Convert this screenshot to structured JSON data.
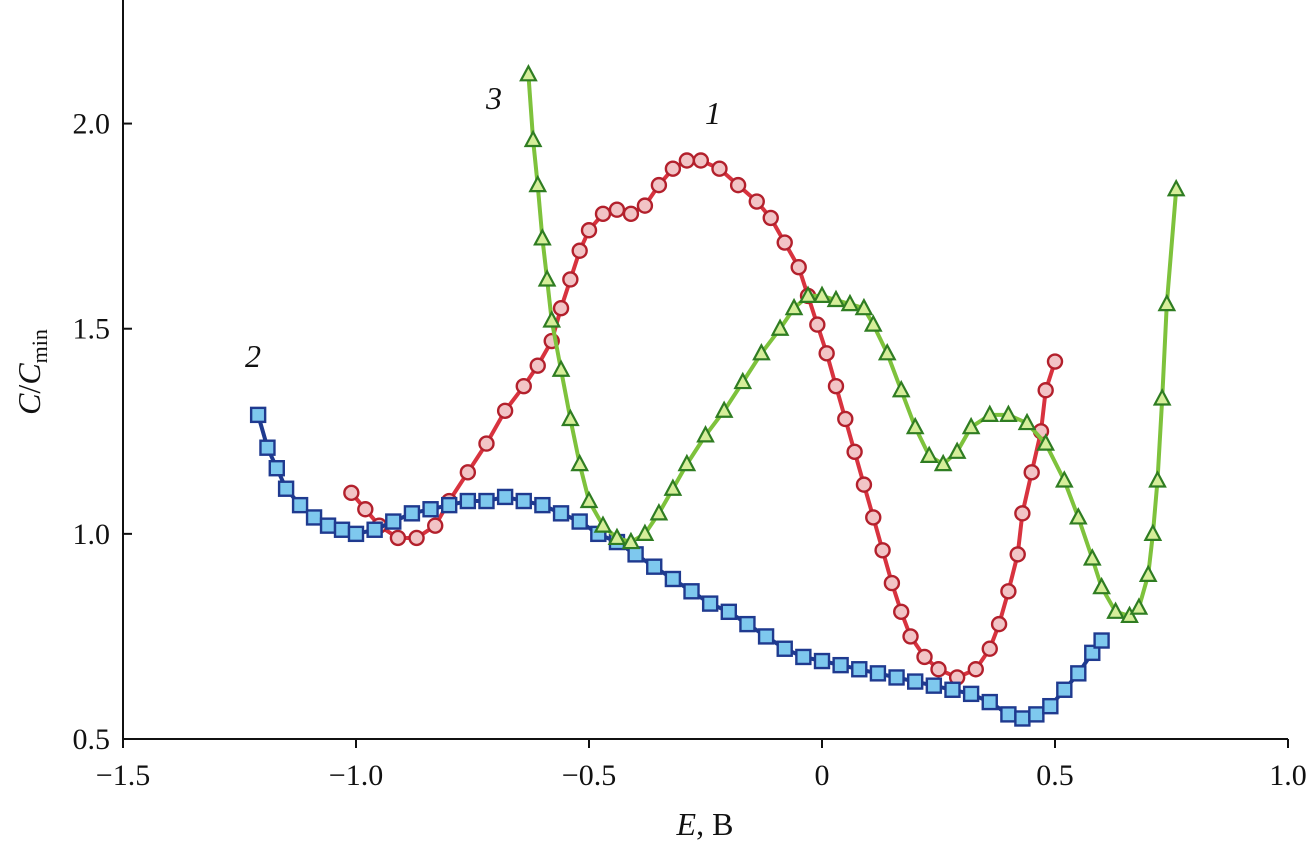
{
  "chart_data": {
    "type": "scatter",
    "title": "",
    "xlabel": {
      "italic": "E",
      "rest": ", В"
    },
    "ylabel": {
      "main": "C",
      "sep": "/",
      "sub_base": "C",
      "sub": "min"
    },
    "xlim": [
      -1.5,
      1.0
    ],
    "ylim": [
      0.5,
      2.25
    ],
    "xticks": [
      -1.5,
      -1.0,
      -0.5,
      0,
      0.5,
      1.0
    ],
    "xtick_labels": [
      "−1.5",
      "−1.0",
      "−0.5",
      "0",
      "0.5",
      "1.0"
    ],
    "yticks": [
      0.5,
      1.0,
      1.5,
      2.0
    ],
    "ytick_labels": [
      "0.5",
      "1.0",
      "1.5",
      "2.0"
    ],
    "grid": false,
    "series": [
      {
        "name": "1",
        "marker": "circle",
        "fill": "#f2c4c6",
        "stroke": "#b3202c",
        "line": "#d8333f",
        "points": [
          [
            -1.01,
            1.1
          ],
          [
            -0.98,
            1.06
          ],
          [
            -0.95,
            1.02
          ],
          [
            -0.91,
            0.99
          ],
          [
            -0.87,
            0.99
          ],
          [
            -0.83,
            1.02
          ],
          [
            -0.8,
            1.08
          ],
          [
            -0.76,
            1.15
          ],
          [
            -0.72,
            1.22
          ],
          [
            -0.68,
            1.3
          ],
          [
            -0.64,
            1.36
          ],
          [
            -0.61,
            1.41
          ],
          [
            -0.58,
            1.47
          ],
          [
            -0.56,
            1.55
          ],
          [
            -0.54,
            1.62
          ],
          [
            -0.52,
            1.69
          ],
          [
            -0.5,
            1.74
          ],
          [
            -0.47,
            1.78
          ],
          [
            -0.44,
            1.79
          ],
          [
            -0.41,
            1.78
          ],
          [
            -0.38,
            1.8
          ],
          [
            -0.35,
            1.85
          ],
          [
            -0.32,
            1.89
          ],
          [
            -0.29,
            1.91
          ],
          [
            -0.26,
            1.91
          ],
          [
            -0.22,
            1.89
          ],
          [
            -0.18,
            1.85
          ],
          [
            -0.14,
            1.81
          ],
          [
            -0.11,
            1.77
          ],
          [
            -0.08,
            1.71
          ],
          [
            -0.05,
            1.65
          ],
          [
            -0.03,
            1.58
          ],
          [
            -0.01,
            1.51
          ],
          [
            0.01,
            1.44
          ],
          [
            0.03,
            1.36
          ],
          [
            0.05,
            1.28
          ],
          [
            0.07,
            1.2
          ],
          [
            0.09,
            1.12
          ],
          [
            0.11,
            1.04
          ],
          [
            0.13,
            0.96
          ],
          [
            0.15,
            0.88
          ],
          [
            0.17,
            0.81
          ],
          [
            0.19,
            0.75
          ],
          [
            0.22,
            0.7
          ],
          [
            0.25,
            0.67
          ],
          [
            0.29,
            0.65
          ],
          [
            0.33,
            0.67
          ],
          [
            0.36,
            0.72
          ],
          [
            0.38,
            0.78
          ],
          [
            0.4,
            0.86
          ],
          [
            0.42,
            0.95
          ],
          [
            0.43,
            1.05
          ],
          [
            0.45,
            1.15
          ],
          [
            0.47,
            1.25
          ],
          [
            0.48,
            1.35
          ],
          [
            0.5,
            1.42
          ]
        ]
      },
      {
        "name": "2",
        "marker": "square",
        "fill": "#7ec8ee",
        "stroke": "#1f3a8f",
        "line": "#1f3a8f",
        "points": [
          [
            -1.21,
            1.29
          ],
          [
            -1.19,
            1.21
          ],
          [
            -1.17,
            1.16
          ],
          [
            -1.15,
            1.11
          ],
          [
            -1.12,
            1.07
          ],
          [
            -1.09,
            1.04
          ],
          [
            -1.06,
            1.02
          ],
          [
            -1.03,
            1.01
          ],
          [
            -1.0,
            1.0
          ],
          [
            -0.96,
            1.01
          ],
          [
            -0.92,
            1.03
          ],
          [
            -0.88,
            1.05
          ],
          [
            -0.84,
            1.06
          ],
          [
            -0.8,
            1.07
          ],
          [
            -0.76,
            1.08
          ],
          [
            -0.72,
            1.08
          ],
          [
            -0.68,
            1.09
          ],
          [
            -0.64,
            1.08
          ],
          [
            -0.6,
            1.07
          ],
          [
            -0.56,
            1.05
          ],
          [
            -0.52,
            1.03
          ],
          [
            -0.48,
            1.0
          ],
          [
            -0.44,
            0.98
          ],
          [
            -0.4,
            0.95
          ],
          [
            -0.36,
            0.92
          ],
          [
            -0.32,
            0.89
          ],
          [
            -0.28,
            0.86
          ],
          [
            -0.24,
            0.83
          ],
          [
            -0.2,
            0.81
          ],
          [
            -0.16,
            0.78
          ],
          [
            -0.12,
            0.75
          ],
          [
            -0.08,
            0.72
          ],
          [
            -0.04,
            0.7
          ],
          [
            0.0,
            0.69
          ],
          [
            0.04,
            0.68
          ],
          [
            0.08,
            0.67
          ],
          [
            0.12,
            0.66
          ],
          [
            0.16,
            0.65
          ],
          [
            0.2,
            0.64
          ],
          [
            0.24,
            0.63
          ],
          [
            0.28,
            0.62
          ],
          [
            0.32,
            0.61
          ],
          [
            0.36,
            0.59
          ],
          [
            0.4,
            0.56
          ],
          [
            0.43,
            0.55
          ],
          [
            0.46,
            0.56
          ],
          [
            0.49,
            0.58
          ],
          [
            0.52,
            0.62
          ],
          [
            0.55,
            0.66
          ],
          [
            0.58,
            0.71
          ],
          [
            0.6,
            0.74
          ]
        ]
      },
      {
        "name": "3",
        "marker": "triangle",
        "fill": "#d6ee9a",
        "stroke": "#2f7d22",
        "line": "#7ec23c",
        "points": [
          [
            -0.63,
            2.12
          ],
          [
            -0.62,
            1.96
          ],
          [
            -0.61,
            1.85
          ],
          [
            -0.6,
            1.72
          ],
          [
            -0.59,
            1.62
          ],
          [
            -0.58,
            1.52
          ],
          [
            -0.56,
            1.4
          ],
          [
            -0.54,
            1.28
          ],
          [
            -0.52,
            1.17
          ],
          [
            -0.5,
            1.08
          ],
          [
            -0.47,
            1.02
          ],
          [
            -0.44,
            0.99
          ],
          [
            -0.41,
            0.98
          ],
          [
            -0.38,
            1.0
          ],
          [
            -0.35,
            1.05
          ],
          [
            -0.32,
            1.11
          ],
          [
            -0.29,
            1.17
          ],
          [
            -0.25,
            1.24
          ],
          [
            -0.21,
            1.3
          ],
          [
            -0.17,
            1.37
          ],
          [
            -0.13,
            1.44
          ],
          [
            -0.09,
            1.5
          ],
          [
            -0.06,
            1.55
          ],
          [
            -0.03,
            1.58
          ],
          [
            0.0,
            1.58
          ],
          [
            0.03,
            1.57
          ],
          [
            0.06,
            1.56
          ],
          [
            0.09,
            1.55
          ],
          [
            0.11,
            1.51
          ],
          [
            0.14,
            1.44
          ],
          [
            0.17,
            1.35
          ],
          [
            0.2,
            1.26
          ],
          [
            0.23,
            1.19
          ],
          [
            0.26,
            1.17
          ],
          [
            0.29,
            1.2
          ],
          [
            0.32,
            1.26
          ],
          [
            0.36,
            1.29
          ],
          [
            0.4,
            1.29
          ],
          [
            0.44,
            1.27
          ],
          [
            0.48,
            1.22
          ],
          [
            0.52,
            1.13
          ],
          [
            0.55,
            1.04
          ],
          [
            0.58,
            0.94
          ],
          [
            0.6,
            0.87
          ],
          [
            0.63,
            0.81
          ],
          [
            0.66,
            0.8
          ],
          [
            0.68,
            0.82
          ],
          [
            0.7,
            0.9
          ],
          [
            0.71,
            1.0
          ],
          [
            0.72,
            1.13
          ],
          [
            0.73,
            1.33
          ],
          [
            0.74,
            1.56
          ],
          [
            0.76,
            1.84
          ]
        ]
      }
    ]
  }
}
